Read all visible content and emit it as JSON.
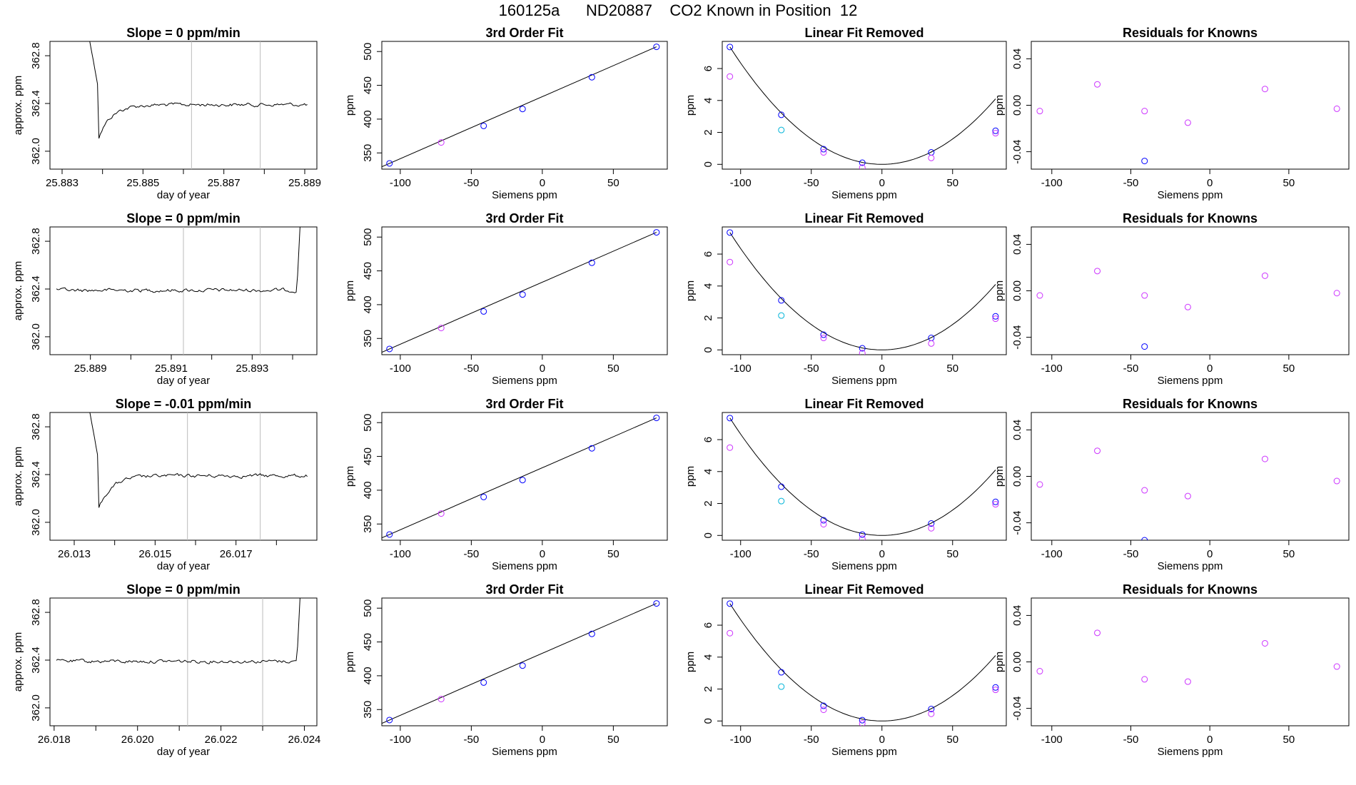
{
  "title": "160125a      ND20887    CO2 Known in Position  12",
  "colors": {
    "line": "#000000",
    "vline": "#bbbbbb",
    "fit_point": "#0000ff",
    "first_point": "#cc33ff",
    "third_point": "#00b4d8",
    "red_mark": "#ff0000"
  },
  "chart_data": [
    {
      "type": "line",
      "title": "Slope =  0  ppm/min",
      "xlabel": "day of year",
      "ylabel": "approx. ppm",
      "xlim": [
        25.8827,
        25.8893
      ],
      "ylim": [
        361.85,
        362.92
      ],
      "xticks": [
        25.883,
        25.884,
        25.885,
        25.886,
        25.887,
        25.888,
        25.889
      ],
      "xticklabels": [
        "25.883",
        "",
        "25.885",
        "",
        "25.887",
        "",
        "25.889"
      ],
      "yticks": [
        362.0,
        362.4,
        362.8
      ],
      "yticklabels": [
        "362.0",
        "362.4",
        "362.8"
      ],
      "vlines": [
        25.8862,
        25.8879
      ]
    },
    {
      "type": "scatter",
      "title": "3rd Order Fit",
      "xlabel": "Siemens ppm",
      "ylabel": "ppm",
      "xlim": [
        -113,
        88
      ],
      "ylim": [
        326,
        515
      ],
      "xticks": [
        -100,
        -50,
        0,
        50
      ],
      "xticklabels": [
        "-100",
        "-50",
        "0",
        "50"
      ],
      "yticks": [
        350,
        400,
        450,
        500
      ],
      "yticklabels": [
        "350",
        "400",
        "450",
        "500"
      ],
      "x": [
        -107.6,
        -71.2,
        -41.3,
        -13.9,
        34.9,
        80.4
      ],
      "y": [
        334.5,
        365.5,
        390.0,
        415.0,
        462.0,
        507.0
      ]
    },
    {
      "type": "scatter",
      "title": "Linear Fit Removed",
      "xlabel": "Siemens ppm",
      "ylabel": "ppm",
      "xlim": [
        -113,
        88
      ],
      "ylim": [
        -0.3,
        7.7
      ],
      "xticks": [
        -100,
        -50,
        0,
        50
      ],
      "xticklabels": [
        "-100",
        "-50",
        "0",
        "50"
      ],
      "yticks": [
        0,
        2,
        4,
        6
      ],
      "yticklabels": [
        "0",
        "2",
        "4",
        "6"
      ],
      "x": [
        -107.6,
        -71.2,
        -41.3,
        -13.9,
        34.9,
        80.4
      ],
      "y_fit": [
        7.35,
        3.1,
        0.95,
        0.1,
        0.75,
        2.1
      ],
      "y_first": [
        5.5,
        2.15,
        0.75,
        -0.2,
        0.4,
        1.95
      ]
    },
    {
      "type": "scatter",
      "title": "Residuals for Knowns",
      "xlabel": "Siemens ppm",
      "ylabel": "ppm",
      "xlim": [
        -113,
        88
      ],
      "ylim": [
        -0.055,
        0.055
      ],
      "xticks": [
        -100,
        -50,
        0,
        50
      ],
      "xticklabels": [
        "-100",
        "-50",
        "0",
        "50"
      ],
      "yticks": [
        -0.04,
        0.0,
        0.04
      ],
      "yticklabels": [
        "-0.04",
        "0.00",
        "0.04"
      ],
      "x": [
        -107.6,
        -71.2,
        -41.3,
        -13.9,
        34.9,
        80.4
      ],
      "y": [
        -0.005,
        0.018,
        -0.005,
        -0.015,
        0.014,
        -0.003
      ],
      "low": {
        "x": -41.3,
        "y": -0.048
      }
    },
    {
      "type": "line",
      "title": "Slope =  0  ppm/min",
      "xlabel": "day of year",
      "ylabel": "approx. ppm",
      "xlim": [
        25.888,
        25.8946
      ],
      "ylim": [
        361.85,
        362.92
      ],
      "xticks": [
        25.889,
        25.89,
        25.891,
        25.892,
        25.893,
        25.894
      ],
      "xticklabels": [
        "25.889",
        "",
        "25.891",
        "",
        "25.893",
        ""
      ],
      "yticks": [
        362.0,
        362.4,
        362.8
      ],
      "yticklabels": [
        "362.0",
        "362.4",
        "362.8"
      ],
      "vlines": [
        25.8913,
        25.8932
      ]
    },
    {
      "type": "scatter",
      "title": "3rd Order Fit",
      "xlabel": "Siemens ppm",
      "ylabel": "ppm",
      "xlim": [
        -113,
        88
      ],
      "ylim": [
        326,
        515
      ],
      "xticks": [
        -100,
        -50,
        0,
        50
      ],
      "xticklabels": [
        "-100",
        "-50",
        "0",
        "50"
      ],
      "yticks": [
        350,
        400,
        450,
        500
      ],
      "yticklabels": [
        "350",
        "400",
        "450",
        "500"
      ],
      "x": [
        -107.6,
        -71.2,
        -41.3,
        -13.9,
        34.9,
        80.4
      ],
      "y": [
        334.5,
        365.5,
        390.0,
        415.0,
        462.0,
        507.0
      ]
    },
    {
      "type": "scatter",
      "title": "Linear Fit Removed",
      "xlabel": "Siemens ppm",
      "ylabel": "ppm",
      "xlim": [
        -113,
        88
      ],
      "ylim": [
        -0.3,
        7.7
      ],
      "xticks": [
        -100,
        -50,
        0,
        50
      ],
      "xticklabels": [
        "-100",
        "-50",
        "0",
        "50"
      ],
      "yticks": [
        0,
        2,
        4,
        6
      ],
      "yticklabels": [
        "0",
        "2",
        "4",
        "6"
      ],
      "x": [
        -107.6,
        -71.2,
        -41.3,
        -13.9,
        34.9,
        80.4
      ],
      "y_fit": [
        7.35,
        3.1,
        0.95,
        0.1,
        0.75,
        2.1
      ],
      "y_first": [
        5.5,
        2.15,
        0.75,
        -0.2,
        0.4,
        1.95
      ]
    },
    {
      "type": "scatter",
      "title": "Residuals for Knowns",
      "xlabel": "Siemens ppm",
      "ylabel": "ppm",
      "xlim": [
        -113,
        88
      ],
      "ylim": [
        -0.055,
        0.055
      ],
      "xticks": [
        -100,
        -50,
        0,
        50
      ],
      "xticklabels": [
        "-100",
        "-50",
        "0",
        "50"
      ],
      "yticks": [
        -0.04,
        0.0,
        0.04
      ],
      "yticklabels": [
        "-0.04",
        "0.00",
        "0.04"
      ],
      "x": [
        -107.6,
        -71.2,
        -41.3,
        -13.9,
        34.9,
        80.4
      ],
      "y": [
        -0.004,
        0.017,
        -0.004,
        -0.014,
        0.013,
        -0.002
      ],
      "low": {
        "x": -41.3,
        "y": -0.048
      }
    },
    {
      "type": "line",
      "title": "Slope =  -0.01  ppm/min",
      "xlabel": "day of year",
      "ylabel": "approx. ppm",
      "xlim": [
        26.0124,
        26.019
      ],
      "ylim": [
        361.85,
        362.92
      ],
      "xticks": [
        26.013,
        26.014,
        26.015,
        26.016,
        26.017,
        26.018
      ],
      "xticklabels": [
        "26.013",
        "",
        "26.015",
        "",
        "26.017",
        ""
      ],
      "yticks": [
        362.0,
        362.4,
        362.8
      ],
      "yticklabels": [
        "362.0",
        "362.4",
        "362.8"
      ],
      "vlines": [
        26.0158,
        26.0176
      ]
    },
    {
      "type": "scatter",
      "title": "3rd Order Fit",
      "xlabel": "Siemens ppm",
      "ylabel": "ppm",
      "xlim": [
        -113,
        88
      ],
      "ylim": [
        326,
        515
      ],
      "xticks": [
        -100,
        -50,
        0,
        50
      ],
      "xticklabels": [
        "-100",
        "-50",
        "0",
        "50"
      ],
      "yticks": [
        350,
        400,
        450,
        500
      ],
      "yticklabels": [
        "350",
        "400",
        "450",
        "500"
      ],
      "x": [
        -107.6,
        -71.2,
        -41.3,
        -13.9,
        34.9,
        80.4
      ],
      "y": [
        334.5,
        365.5,
        390.0,
        415.0,
        462.0,
        507.0
      ]
    },
    {
      "type": "scatter",
      "title": "Linear Fit Removed",
      "xlabel": "Siemens ppm",
      "ylabel": "ppm",
      "xlim": [
        -113,
        88
      ],
      "ylim": [
        -0.3,
        7.7
      ],
      "xticks": [
        -100,
        -50,
        0,
        50
      ],
      "xticklabels": [
        "-100",
        "-50",
        "0",
        "50"
      ],
      "yticks": [
        0,
        2,
        4,
        6
      ],
      "yticklabels": [
        "0",
        "2",
        "4",
        "6"
      ],
      "x": [
        -107.6,
        -71.2,
        -41.3,
        -13.9,
        34.9,
        80.4
      ],
      "y_fit": [
        7.35,
        3.05,
        0.95,
        0.05,
        0.75,
        2.1
      ],
      "y_first": [
        5.5,
        2.15,
        0.7,
        -0.2,
        0.45,
        1.95
      ]
    },
    {
      "type": "scatter",
      "title": "Residuals for Knowns",
      "xlabel": "Siemens ppm",
      "ylabel": "ppm",
      "xlim": [
        -113,
        88
      ],
      "ylim": [
        -0.055,
        0.055
      ],
      "xticks": [
        -100,
        -50,
        0,
        50
      ],
      "xticklabels": [
        "-100",
        "-50",
        "0",
        "50"
      ],
      "yticks": [
        -0.04,
        0.0,
        0.04
      ],
      "yticklabels": [
        "-0.04",
        "0.00",
        "0.04"
      ],
      "x": [
        -107.6,
        -71.2,
        -41.3,
        -13.9,
        34.9,
        80.4
      ],
      "y": [
        -0.007,
        0.022,
        -0.012,
        -0.017,
        0.015,
        -0.004
      ],
      "low": {
        "x": -41.3,
        "y": -0.055
      }
    },
    {
      "type": "line",
      "title": "Slope =  0  ppm/min",
      "xlabel": "day of year",
      "ylabel": "approx. ppm",
      "xlim": [
        26.0179,
        26.0243
      ],
      "ylim": [
        361.85,
        362.92
      ],
      "xticks": [
        26.018,
        26.019,
        26.02,
        26.021,
        26.022,
        26.023,
        26.024
      ],
      "xticklabels": [
        "26.018",
        "",
        "26.020",
        "",
        "26.022",
        "",
        "26.024"
      ],
      "yticks": [
        362.0,
        362.4,
        362.8
      ],
      "yticklabels": [
        "362.0",
        "362.4",
        "362.8"
      ],
      "vlines": [
        26.0212,
        26.023
      ]
    },
    {
      "type": "scatter",
      "title": "3rd Order Fit",
      "xlabel": "Siemens ppm",
      "ylabel": "ppm",
      "xlim": [
        -113,
        88
      ],
      "ylim": [
        326,
        515
      ],
      "xticks": [
        -100,
        -50,
        0,
        50
      ],
      "xticklabels": [
        "-100",
        "-50",
        "0",
        "50"
      ],
      "yticks": [
        350,
        400,
        450,
        500
      ],
      "yticklabels": [
        "350",
        "400",
        "450",
        "500"
      ],
      "x": [
        -107.6,
        -71.2,
        -41.3,
        -13.9,
        34.9,
        80.4
      ],
      "y": [
        334.5,
        365.5,
        390.0,
        415.0,
        462.0,
        507.0
      ]
    },
    {
      "type": "scatter",
      "title": "Linear Fit Removed",
      "xlabel": "Siemens ppm",
      "ylabel": "ppm",
      "xlim": [
        -113,
        88
      ],
      "ylim": [
        -0.3,
        7.7
      ],
      "xticks": [
        -100,
        -50,
        0,
        50
      ],
      "xticklabels": [
        "-100",
        "-50",
        "0",
        "50"
      ],
      "yticks": [
        0,
        2,
        4,
        6
      ],
      "yticklabels": [
        "0",
        "2",
        "4",
        "6"
      ],
      "x": [
        -107.6,
        -71.2,
        -41.3,
        -13.9,
        34.9,
        80.4
      ],
      "y_fit": [
        7.35,
        3.05,
        0.95,
        0.05,
        0.75,
        2.1
      ],
      "y_first": [
        5.5,
        2.15,
        0.7,
        -0.15,
        0.45,
        1.95
      ]
    },
    {
      "type": "scatter",
      "title": "Residuals for Knowns",
      "xlabel": "Siemens ppm",
      "ylabel": "ppm",
      "xlim": [
        -113,
        88
      ],
      "ylim": [
        -0.055,
        0.055
      ],
      "xticks": [
        -100,
        -50,
        0,
        50
      ],
      "xticklabels": [
        "-100",
        "-50",
        "0",
        "50"
      ],
      "yticks": [
        -0.04,
        0.0,
        0.04
      ],
      "yticklabels": [
        "-0.04",
        "0.00",
        "0.04"
      ],
      "x": [
        -107.6,
        -71.2,
        -41.3,
        -13.9,
        34.9,
        80.4
      ],
      "y": [
        -0.008,
        0.025,
        -0.015,
        -0.017,
        0.016,
        -0.004
      ]
    }
  ]
}
